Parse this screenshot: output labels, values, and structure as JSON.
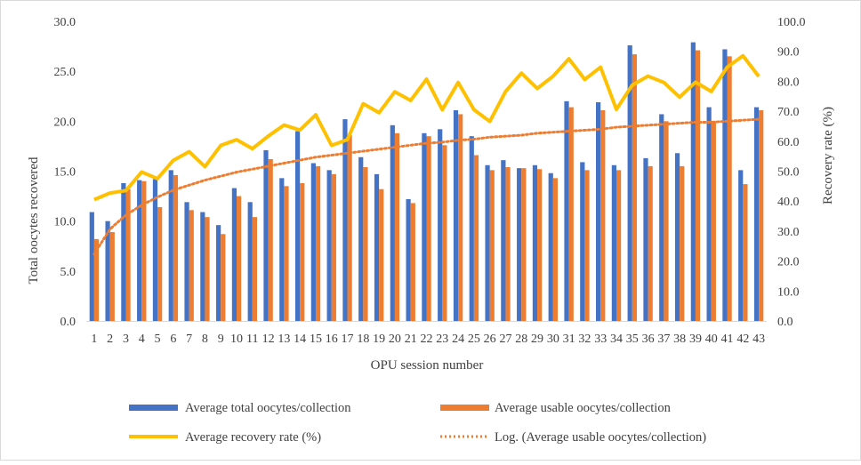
{
  "chart_data": {
    "type": "bar",
    "xlabel": "OPU session number",
    "ylabel": "Total oocytes recovered",
    "y2label": "Recovery rate (%)",
    "ylim": [
      0,
      30
    ],
    "y2lim": [
      0,
      100
    ],
    "yticks": [
      "0.0",
      "5.0",
      "10.0",
      "15.0",
      "20.0",
      "25.0",
      "30.0"
    ],
    "y2ticks": [
      "0.0",
      "10.0",
      "20.0",
      "30.0",
      "40.0",
      "50.0",
      "60.0",
      "70.0",
      "80.0",
      "90.0",
      "100.0"
    ],
    "legend_position": "bottom",
    "grid": false,
    "categories": [
      "1",
      "2",
      "3",
      "4",
      "5",
      "6",
      "7",
      "8",
      "9",
      "10",
      "11",
      "12",
      "13",
      "14",
      "15",
      "16",
      "17",
      "18",
      "19",
      "20",
      "21",
      "22",
      "23",
      "24",
      "25",
      "26",
      "27",
      "28",
      "29",
      "30",
      "31",
      "32",
      "33",
      "34",
      "35",
      "36",
      "37",
      "38",
      "39",
      "40",
      "41",
      "42",
      "43"
    ],
    "series": [
      {
        "name": "Average total oocytes/collection",
        "kind": "bar",
        "axis": "left",
        "color": "#4472C4",
        "values": [
          10.9,
          10.0,
          13.8,
          14.1,
          14.2,
          15.1,
          11.9,
          10.9,
          9.6,
          13.3,
          11.9,
          17.1,
          14.3,
          19.0,
          15.8,
          15.1,
          20.2,
          16.4,
          14.7,
          19.6,
          12.2,
          18.8,
          19.2,
          21.1,
          18.5,
          15.6,
          16.1,
          15.3,
          15.6,
          14.8,
          22.0,
          15.9,
          21.9,
          15.6,
          27.6,
          16.3,
          20.7,
          16.8,
          27.9,
          21.4,
          27.2,
          15.1,
          21.4
        ]
      },
      {
        "name": "Average usable oocytes/collection",
        "kind": "bar",
        "axis": "left",
        "color": "#ED7D31",
        "values": [
          8.2,
          8.9,
          13.2,
          14.0,
          11.4,
          14.6,
          11.1,
          10.4,
          8.7,
          12.5,
          10.4,
          16.2,
          13.5,
          13.8,
          15.5,
          14.7,
          18.6,
          15.4,
          13.2,
          18.8,
          11.8,
          18.5,
          17.6,
          20.7,
          16.6,
          15.1,
          15.4,
          15.3,
          15.2,
          14.3,
          21.4,
          15.1,
          21.1,
          15.1,
          26.7,
          15.5,
          20.0,
          15.5,
          27.1,
          20.0,
          26.5,
          13.7,
          21.1
        ]
      },
      {
        "name": "Average recovery rate (%)",
        "kind": "line",
        "axis": "right",
        "color": "#FFC000",
        "values": [
          40.5,
          42.7,
          43.5,
          49.7,
          47.5,
          53.6,
          56.5,
          51.5,
          58.6,
          60.5,
          57.5,
          61.7,
          65.4,
          63.7,
          68.8,
          58.6,
          60.5,
          72.5,
          69.5,
          76.5,
          73.6,
          80.7,
          70.5,
          79.6,
          70.5,
          66.6,
          76.6,
          82.7,
          77.6,
          81.7,
          87.5,
          80.6,
          84.7,
          70.6,
          78.7,
          81.7,
          79.6,
          74.7,
          79.7,
          76.6,
          84.7,
          88.5,
          81.6
        ]
      },
      {
        "name": "Log. (Average usable oocytes/collection)",
        "kind": "trendline",
        "axis": "left",
        "color": "#ED7D31",
        "values": [
          6.7,
          9.2,
          10.6,
          11.6,
          12.4,
          13.1,
          13.6,
          14.1,
          14.5,
          14.9,
          15.2,
          15.5,
          15.8,
          16.1,
          16.4,
          16.6,
          16.8,
          17.0,
          17.2,
          17.4,
          17.6,
          17.8,
          17.9,
          18.1,
          18.2,
          18.4,
          18.5,
          18.6,
          18.8,
          18.9,
          19.0,
          19.1,
          19.2,
          19.4,
          19.5,
          19.6,
          19.7,
          19.8,
          19.9,
          19.9,
          20.0,
          20.1,
          20.2
        ]
      }
    ]
  }
}
